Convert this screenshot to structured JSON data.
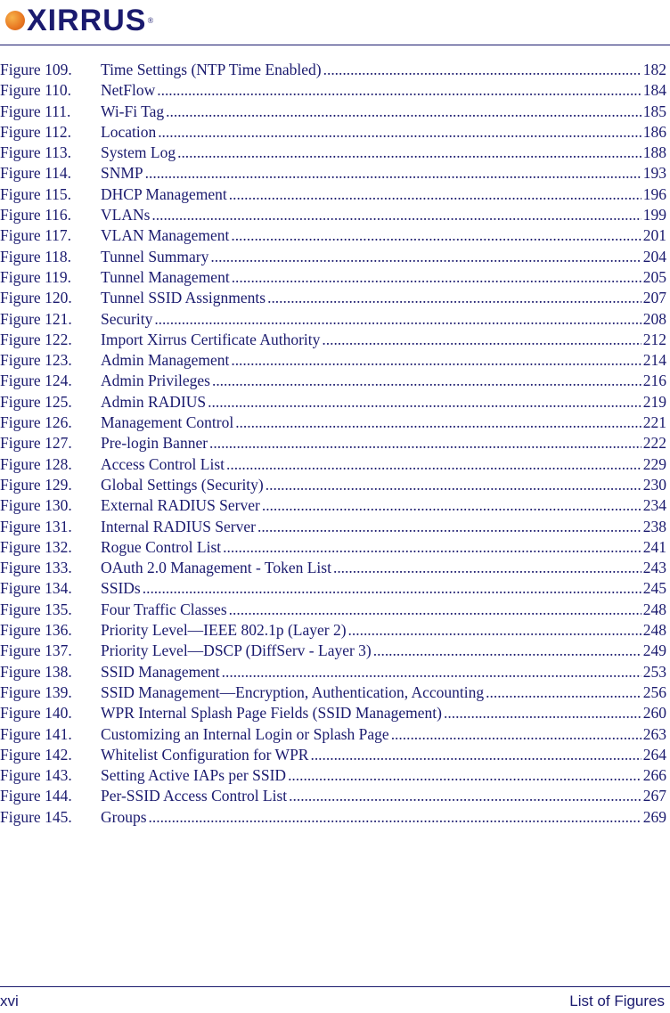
{
  "header": {
    "logo_text": "XIRRUS",
    "logo_mark": "®",
    "brand_color": "#1a1a6e",
    "logo_dot_color": "#e87722"
  },
  "toc_entries": [
    {
      "label": "Figure 109.",
      "title": "Time Settings (NTP Time Enabled)",
      "page": "182"
    },
    {
      "label": "Figure 110.",
      "title": "NetFlow",
      "page": "184"
    },
    {
      "label": "Figure 111.",
      "title": "Wi-Fi Tag",
      "page": "185"
    },
    {
      "label": "Figure 112.",
      "title": "Location",
      "page": "186"
    },
    {
      "label": "Figure 113.",
      "title": "System Log",
      "page": "188"
    },
    {
      "label": "Figure 114.",
      "title": "SNMP",
      "page": "193"
    },
    {
      "label": "Figure 115.",
      "title": "DHCP Management",
      "page": "196"
    },
    {
      "label": "Figure 116.",
      "title": "VLANs",
      "page": "199"
    },
    {
      "label": "Figure 117.",
      "title": "VLAN Management",
      "page": "201"
    },
    {
      "label": "Figure 118.",
      "title": "Tunnel Summary",
      "page": "204"
    },
    {
      "label": "Figure 119.",
      "title": "Tunnel Management",
      "page": "205"
    },
    {
      "label": "Figure 120.",
      "title": "Tunnel SSID Assignments",
      "page": "207"
    },
    {
      "label": "Figure 121.",
      "title": "Security",
      "page": "208"
    },
    {
      "label": "Figure 122.",
      "title": "Import Xirrus Certificate Authority",
      "page": "212"
    },
    {
      "label": "Figure 123.",
      "title": "Admin Management",
      "page": "214"
    },
    {
      "label": "Figure 124.",
      "title": "Admin Privileges",
      "page": "216"
    },
    {
      "label": "Figure 125.",
      "title": "Admin RADIUS",
      "page": "219"
    },
    {
      "label": "Figure 126.",
      "title": "Management Control",
      "page": "221"
    },
    {
      "label": "Figure 127.",
      "title": "Pre-login Banner",
      "page": "222"
    },
    {
      "label": "Figure 128.",
      "title": "Access Control List",
      "page": "229"
    },
    {
      "label": "Figure 129.",
      "title": "Global Settings (Security)",
      "page": "230"
    },
    {
      "label": "Figure 130.",
      "title": "External RADIUS Server",
      "page": "234"
    },
    {
      "label": "Figure 131.",
      "title": "Internal RADIUS Server",
      "page": "238"
    },
    {
      "label": "Figure 132.",
      "title": "Rogue Control List",
      "page": "241"
    },
    {
      "label": "Figure 133.",
      "title": "OAuth 2.0 Management - Token List",
      "page": "243"
    },
    {
      "label": "Figure 134.",
      "title": "SSIDs",
      "page": "245"
    },
    {
      "label": "Figure 135.",
      "title": "Four Traffic Classes",
      "page": "248"
    },
    {
      "label": "Figure 136.",
      "title": "Priority Level—IEEE 802.1p (Layer 2)",
      "page": "248"
    },
    {
      "label": "Figure 137.",
      "title": "Priority Level—DSCP (DiffServ - Layer 3)",
      "page": "249"
    },
    {
      "label": "Figure 138.",
      "title": "SSID Management",
      "page": "253"
    },
    {
      "label": "Figure 139.",
      "title": "SSID Management—Encryption, Authentication, Accounting",
      "page": "256"
    },
    {
      "label": "Figure 140.",
      "title": "WPR Internal Splash Page Fields (SSID Management)",
      "page": "260"
    },
    {
      "label": "Figure 141.",
      "title": "Customizing an Internal Login or Splash Page",
      "page": "263"
    },
    {
      "label": "Figure 142.",
      "title": "Whitelist Configuration for WPR",
      "page": "264"
    },
    {
      "label": "Figure 143.",
      "title": "Setting Active IAPs per SSID",
      "page": "266"
    },
    {
      "label": "Figure 144.",
      "title": "Per-SSID Access Control List",
      "page": "267"
    },
    {
      "label": "Figure 145.",
      "title": "Groups",
      "page": "269"
    }
  ],
  "footer": {
    "page_number": "xvi",
    "section_title": "List of Figures"
  }
}
